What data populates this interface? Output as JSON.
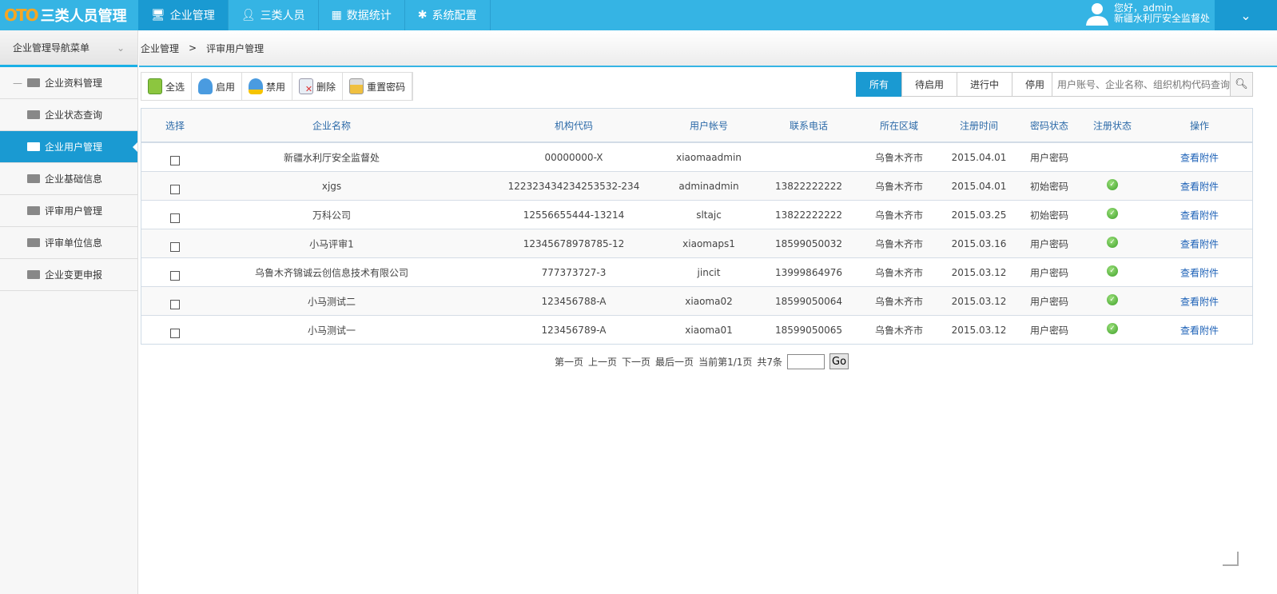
{
  "app": {
    "logo_mark": "OTO",
    "title": "三类人员管理"
  },
  "nav": [
    {
      "label": "企业管理",
      "icon": "monitor-icon",
      "active": true
    },
    {
      "label": "三类人员",
      "icon": "user-icon"
    },
    {
      "label": "数据统计",
      "icon": "chart-icon"
    },
    {
      "label": "系统配置",
      "icon": "puzzle-icon"
    }
  ],
  "user": {
    "greeting": "您好，admin",
    "org": "新疆水利厅安全监督处"
  },
  "sidebar": {
    "title": "企业管理导航菜单",
    "group": "企业资料管理",
    "items": [
      {
        "label": "企业状态查询"
      },
      {
        "label": "企业用户管理",
        "active": true
      },
      {
        "label": "企业基础信息"
      },
      {
        "label": "评审用户管理"
      },
      {
        "label": "评审单位信息"
      },
      {
        "label": "企业变更申报"
      }
    ]
  },
  "breadcrumb": {
    "root": "企业管理",
    "sep": ">",
    "current": "评审用户管理"
  },
  "toolbar": {
    "select_all": "全选",
    "enable": "启用",
    "disable": "禁用",
    "delete": "删除",
    "reset_password": "重置密码"
  },
  "filters": {
    "all": "所有",
    "pending": "待启用",
    "active": "进行中",
    "stopped": "停用"
  },
  "search": {
    "placeholder": "用户账号、企业名称、组织机构代码查询",
    "value": ""
  },
  "table": {
    "columns": [
      "选择",
      "企业名称",
      "机构代码",
      "用户帐号",
      "联系电话",
      "所在区域",
      "注册时间",
      "密码状态",
      "注册状态",
      "操作"
    ],
    "rows": [
      {
        "name": "新疆水利厅安全监督处",
        "code": "00000000-X",
        "account": "xiaomaadmin",
        "phone": "",
        "region": "乌鲁木齐市",
        "date": "2015.04.01",
        "pwd": "用户密码",
        "registered": false,
        "action": "查看附件"
      },
      {
        "name": "xjgs",
        "code": "122323434234253532-234",
        "account": "adminadmin",
        "phone": "13822222222",
        "region": "乌鲁木齐市",
        "date": "2015.04.01",
        "pwd": "初始密码",
        "registered": true,
        "action": "查看附件"
      },
      {
        "name": "万科公司",
        "code": "12556655444-13214",
        "account": "sltajc",
        "phone": "13822222222",
        "region": "乌鲁木齐市",
        "date": "2015.03.25",
        "pwd": "初始密码",
        "registered": true,
        "action": "查看附件"
      },
      {
        "name": "小马评审1",
        "code": "12345678978785-12",
        "account": "xiaomaps1",
        "phone": "18599050032",
        "region": "乌鲁木齐市",
        "date": "2015.03.16",
        "pwd": "用户密码",
        "registered": true,
        "action": "查看附件"
      },
      {
        "name": "乌鲁木齐锦诚云创信息技术有限公司",
        "code": "777373727-3",
        "account": "jincit",
        "phone": "13999864976",
        "region": "乌鲁木齐市",
        "date": "2015.03.12",
        "pwd": "用户密码",
        "registered": true,
        "action": "查看附件"
      },
      {
        "name": "小马测试二",
        "code": "123456788-A",
        "account": "xiaoma02",
        "phone": "18599050064",
        "region": "乌鲁木齐市",
        "date": "2015.03.12",
        "pwd": "用户密码",
        "registered": true,
        "action": "查看附件"
      },
      {
        "name": "小马测试一",
        "code": "123456789-A",
        "account": "xiaoma01",
        "phone": "18599050065",
        "region": "乌鲁木齐市",
        "date": "2015.03.12",
        "pwd": "用户密码",
        "registered": true,
        "action": "查看附件"
      }
    ]
  },
  "pager": {
    "first": "第一页",
    "prev": "上一页",
    "next": "下一页",
    "last": "最后一页",
    "current": "当前第1/1页",
    "total": "共7条",
    "go": "Go"
  }
}
